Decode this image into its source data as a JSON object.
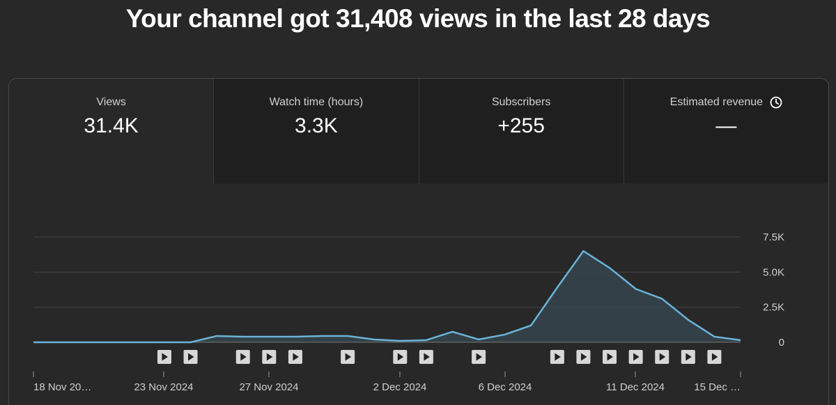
{
  "headline": "Your channel got 31,408 views in the last 28 days",
  "metrics": [
    {
      "label": "Views",
      "value": "31.4K",
      "selected": true
    },
    {
      "label": "Watch time (hours)",
      "value": "3.3K",
      "selected": false
    },
    {
      "label": "Subscribers",
      "value": "+255",
      "selected": false
    },
    {
      "label": "Estimated revenue",
      "value": "—",
      "selected": false,
      "icon": "clock-icon"
    }
  ],
  "colors": {
    "line": "#6ab4d8",
    "area": "#35444c",
    "grid": "#444444",
    "background": "#282828",
    "metric_bg": "#1f1f1f",
    "marker_bg": "#d7d7d7"
  },
  "chart_data": {
    "type": "area",
    "series": [
      {
        "values": [
          0,
          0,
          0,
          0,
          0,
          0,
          0,
          450,
          400,
          400,
          400,
          450,
          450,
          200,
          100,
          150,
          750,
          200,
          550,
          1200,
          3900,
          6500,
          5300,
          3800,
          3100,
          1600,
          400,
          150
        ]
      }
    ],
    "x_tick_labels": [
      "18 Nov 20…",
      "23 Nov 2024",
      "27 Nov 2024",
      "2 Dec 2024",
      "6 Dec 2024",
      "11 Dec 2024",
      "15 Dec …"
    ],
    "y_tick_labels": [
      "7.5K",
      "5.0K",
      "2.5K",
      "0"
    ],
    "y_tick_values": [
      7500,
      5000,
      2500,
      0
    ],
    "ylim": [
      0,
      7500
    ],
    "video_markers": [
      5,
      6,
      8,
      9,
      10,
      12,
      14,
      15,
      17,
      20,
      21,
      22,
      23,
      24,
      25,
      26
    ],
    "grid": true
  }
}
